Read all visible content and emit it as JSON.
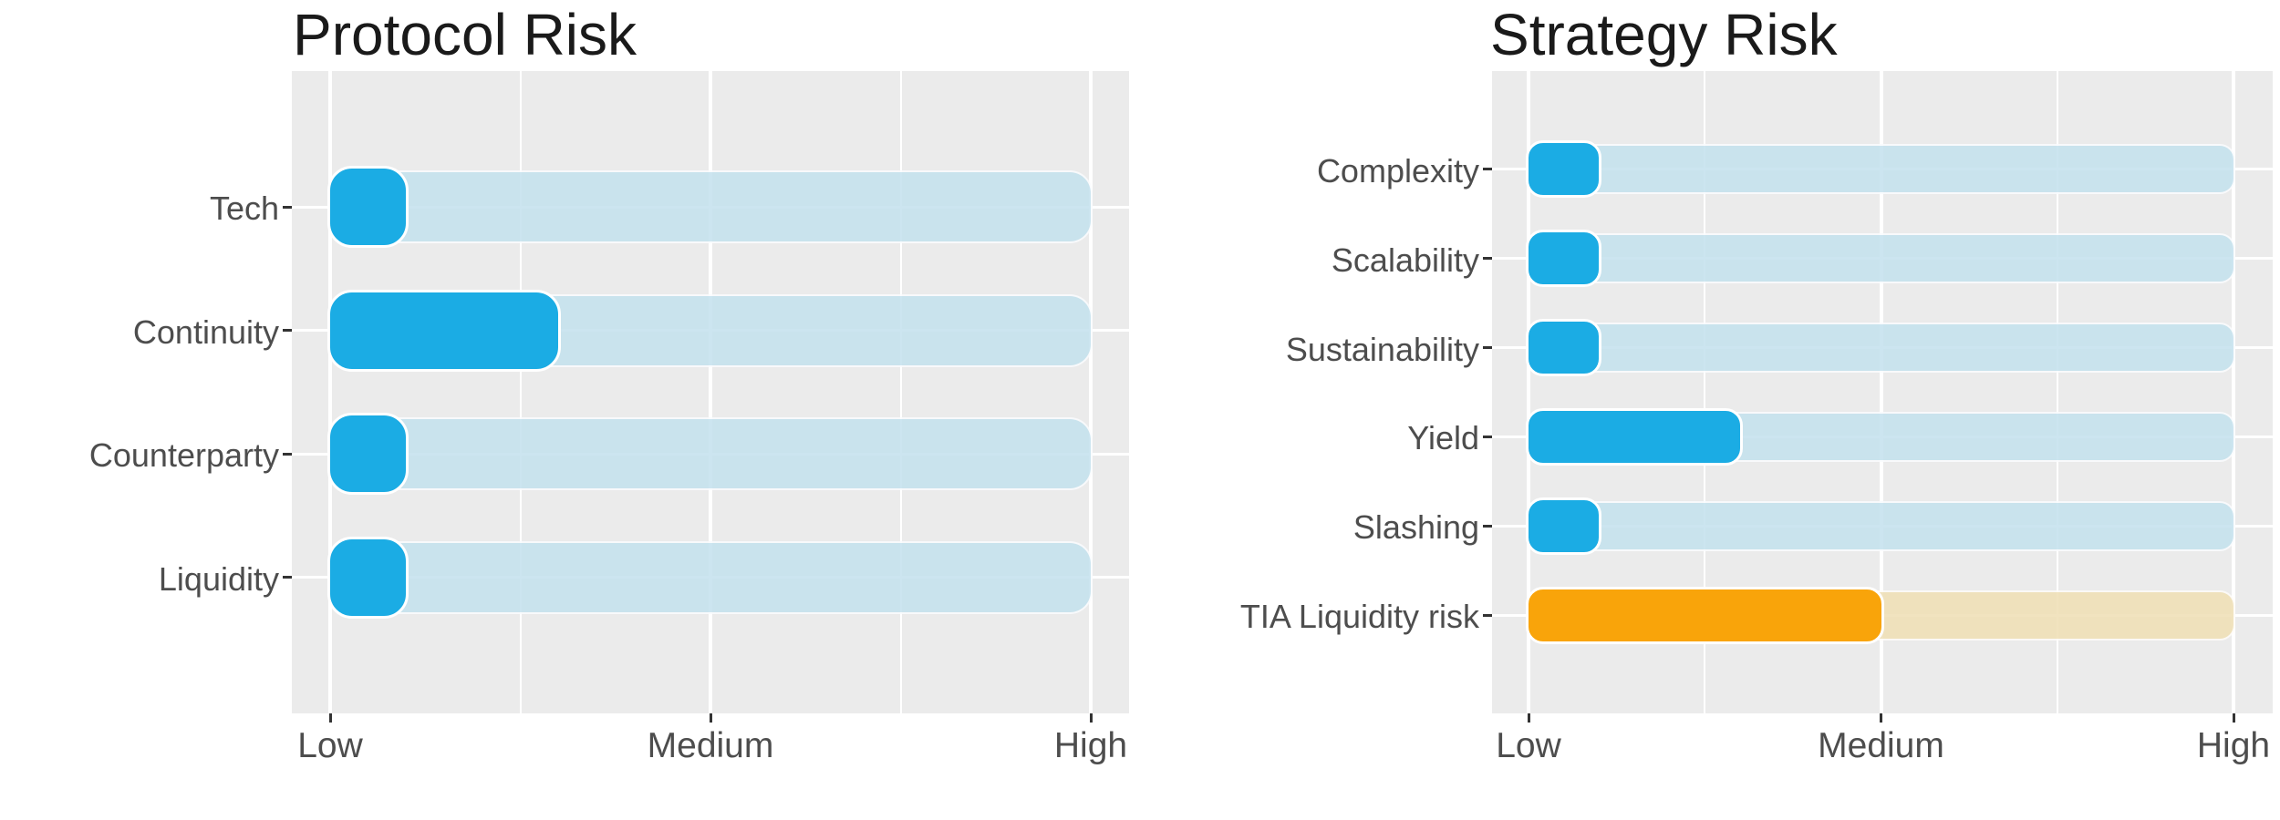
{
  "figure": {
    "background": "#FFFFFF"
  },
  "colors": {
    "panel_background": "#EBEBEB",
    "gridline": "#FFFFFF",
    "axis_text": "#4D4D4D",
    "title_text": "#1A1A1A",
    "tick_mark": "#333333",
    "blue_fill": "#1BACE4",
    "blue_track": "#C5E2EE",
    "orange_fill": "#F9A40A",
    "orange_track": "#F0E0B6"
  },
  "chart_data": [
    {
      "type": "bar",
      "title": "Protocol Risk",
      "orientation": "horizontal_bullet",
      "x_axis": {
        "tick_labels": [
          "Low",
          "Medium",
          "High"
        ],
        "tick_values": [
          1,
          2,
          3
        ],
        "minor_tick_values": [
          1.5,
          2.5
        ],
        "range": [
          1,
          3
        ]
      },
      "categories": [
        "Tech",
        "Continuity",
        "Counterparty",
        "Liquidity"
      ],
      "values": [
        1.2,
        1.6,
        1.2,
        1.2
      ],
      "bars": [
        {
          "category": "Tech",
          "value": 1.2,
          "track_max": 3,
          "fill_color": "#1BACE4",
          "track_color": "#C5E2EE"
        },
        {
          "category": "Continuity",
          "value": 1.6,
          "track_max": 3,
          "fill_color": "#1BACE4",
          "track_color": "#C5E2EE"
        },
        {
          "category": "Counterparty",
          "value": 1.2,
          "track_max": 3,
          "fill_color": "#1BACE4",
          "track_color": "#C5E2EE"
        },
        {
          "category": "Liquidity",
          "value": 1.2,
          "track_max": 3,
          "fill_color": "#1BACE4",
          "track_color": "#C5E2EE"
        }
      ],
      "legend": "none",
      "grid": "on",
      "panel_background": "#EBEBEB"
    },
    {
      "type": "bar",
      "title": "Strategy Risk",
      "orientation": "horizontal_bullet",
      "x_axis": {
        "tick_labels": [
          "Low",
          "Medium",
          "High"
        ],
        "tick_values": [
          1,
          2,
          3
        ],
        "minor_tick_values": [
          1.5,
          2.5
        ],
        "range": [
          1,
          3
        ]
      },
      "categories": [
        "Complexity",
        "Scalability",
        "Sustainability",
        "Yield",
        "Slashing",
        "TIA Liquidity risk"
      ],
      "values": [
        1.2,
        1.2,
        1.2,
        1.6,
        1.2,
        2.0
      ],
      "bars": [
        {
          "category": "Complexity",
          "value": 1.2,
          "track_max": 3,
          "fill_color": "#1BACE4",
          "track_color": "#C5E2EE"
        },
        {
          "category": "Scalability",
          "value": 1.2,
          "track_max": 3,
          "fill_color": "#1BACE4",
          "track_color": "#C5E2EE"
        },
        {
          "category": "Sustainability",
          "value": 1.2,
          "track_max": 3,
          "fill_color": "#1BACE4",
          "track_color": "#C5E2EE"
        },
        {
          "category": "Yield",
          "value": 1.6,
          "track_max": 3,
          "fill_color": "#1BACE4",
          "track_color": "#C5E2EE"
        },
        {
          "category": "Slashing",
          "value": 1.2,
          "track_max": 3,
          "fill_color": "#1BACE4",
          "track_color": "#C5E2EE"
        },
        {
          "category": "TIA Liquidity risk",
          "value": 2.0,
          "track_max": 3,
          "fill_color": "#F9A40A",
          "track_color": "#F0E0B6"
        }
      ],
      "legend": "none",
      "grid": "on",
      "panel_background": "#EBEBEB"
    }
  ]
}
